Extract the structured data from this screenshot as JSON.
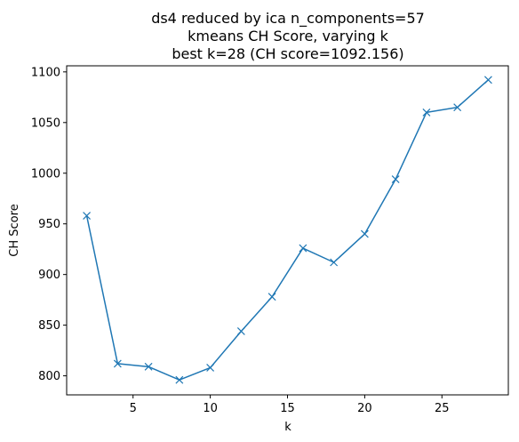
{
  "chart_data": {
    "type": "line",
    "title_lines": [
      "ds4 reduced by ica n_components=57",
      "kmeans CH Score, varying k",
      "best k=28 (CH score=1092.156)"
    ],
    "xlabel": "k",
    "ylabel": "CH Score",
    "xlim": [
      0.7,
      29.3
    ],
    "ylim": [
      781.2,
      1106.0
    ],
    "xticks": [
      5,
      10,
      15,
      20,
      25
    ],
    "yticks": [
      800,
      850,
      900,
      950,
      1000,
      1050,
      1100
    ],
    "grid": false,
    "marker": "x",
    "line_color": "#1f77b4",
    "series": [
      {
        "x": [
          2,
          4,
          6,
          8,
          10,
          12,
          14,
          16,
          18,
          20,
          22,
          24,
          26,
          28
        ],
        "values": [
          958,
          812,
          809,
          796,
          808,
          844,
          878,
          926,
          912,
          940,
          994,
          1060,
          1065,
          1092.156
        ]
      }
    ]
  }
}
